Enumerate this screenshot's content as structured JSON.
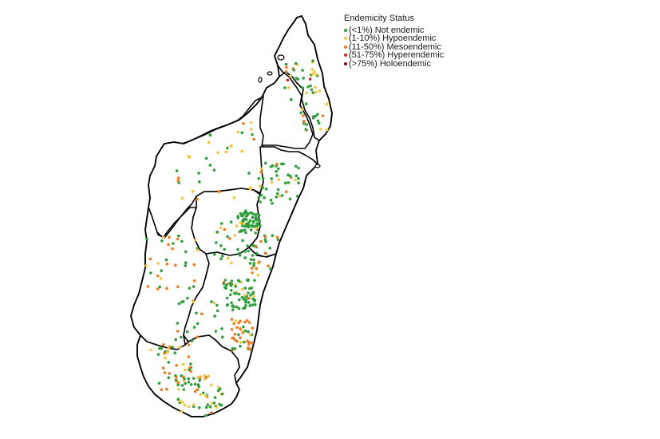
{
  "legend": {
    "title": "Endemicity Status",
    "items": [
      {
        "label": "(<1%) Not endemic",
        "color": "#2e9e3a"
      },
      {
        "label": "(1-10%) Hypoendemic",
        "color": "#f5c542"
      },
      {
        "label": "(11-50%) Mesoendemic",
        "color": "#f07a1e"
      },
      {
        "label": "(51-75%) Hyperendemic",
        "color": "#d9241f"
      },
      {
        "label": "(>75%) Holoendemic",
        "color": "#8b0015"
      }
    ]
  }
}
